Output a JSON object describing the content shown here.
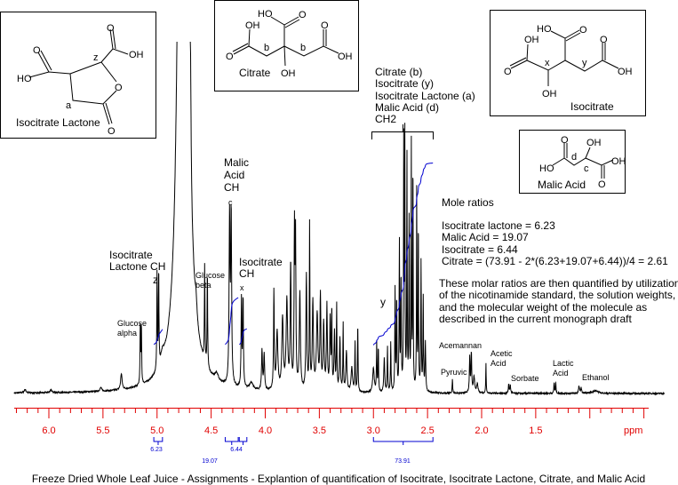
{
  "caption": "Freeze Dried Whole Leaf Juice - Assignments - Explantion of quantification of Isocitrate, Isocitrate Lactone, Citrate, and Malic Acid",
  "colors": {
    "axis": "#e00000",
    "integral": "#0000d0",
    "spectrum": "#000000"
  },
  "structures": {
    "isocitrate_lactone": {
      "name": "Isocitrate Lactone",
      "labels": [
        "z",
        "a"
      ],
      "atoms": [
        "O",
        "HO",
        "O",
        "OH",
        "O",
        "O"
      ]
    },
    "citrate": {
      "name": "Citrate",
      "labels": [
        "b",
        "b"
      ],
      "atoms": [
        "HO",
        "O",
        "OH",
        "O",
        "O",
        "OH",
        "OH"
      ]
    },
    "isocitrate": {
      "name": "Isocitrate",
      "labels": [
        "x",
        "y"
      ],
      "atoms": [
        "HO",
        "O",
        "OH",
        "O",
        "O",
        "OH",
        "OH"
      ]
    },
    "malic_acid": {
      "name": "Malic Acid",
      "labels": [
        "d",
        "c"
      ],
      "atoms": [
        "O",
        "HO",
        "OH",
        "OH",
        "O"
      ]
    }
  },
  "annotations": {
    "ch2_group": [
      "Citrate (b)",
      "Isocitrate (y)",
      "Isocitrate Lactone (a)",
      "Malic Acid (d)",
      "CH2"
    ],
    "isocitrate_lactone_ch": [
      "Isocitrate",
      "Lactone CH",
      "z"
    ],
    "glucose_alpha": [
      "Glucose",
      "alpha"
    ],
    "glucose_beta": [
      "Glucose",
      "beta"
    ],
    "malic_acid_ch": [
      "Malic",
      "Acid",
      "CH",
      "c"
    ],
    "isocitrate_ch": [
      "Isocitrate",
      "CH",
      "x"
    ],
    "y_label": "y",
    "acemannan": "Acemannan",
    "pyruvic": "Pyruvic",
    "acetic_acid": [
      "Acetic",
      "Acid"
    ],
    "sorbate": "Sorbate",
    "lactic_acid": [
      "Lactic",
      "Acid"
    ],
    "ethanol": "Ethanol"
  },
  "mole_ratios": {
    "title": "Mole ratios",
    "lines": [
      "Isocitrate lactone = 6.23",
      "Malic Acid = 19.07",
      "Isocitrate = 6.44",
      "Citrate = (73.91 - 2*(6.23+19.07+6.44))/4 = 2.61"
    ],
    "note": [
      "These molar ratios are then quantified by utilization",
      "of the nicotinamide standard, the solution weights,",
      "and the molecular weight of the molecule as",
      "described in the current monograph draft"
    ]
  },
  "chart_data": {
    "type": "line",
    "title": "",
    "xlabel": "ppm",
    "ylabel": "",
    "x_reversed": true,
    "xlim": [
      6.32,
      0.46
    ],
    "x_ticks": [
      "6.0",
      "5.5",
      "5.0",
      "4.5",
      "4.0",
      "3.5",
      "3.0",
      "2.5",
      "2.0",
      "1.5"
    ],
    "x_tick_values": [
      6.0,
      5.5,
      5.0,
      4.5,
      4.0,
      3.5,
      3.0,
      2.5,
      2.0,
      1.5
    ],
    "grid": false,
    "peaks_note_units": "ppm, relative intensity, half-width ppm",
    "peaks": [
      [
        6.22,
        4,
        0.01
      ],
      [
        5.98,
        3,
        0.01
      ],
      [
        5.52,
        4,
        0.01
      ],
      [
        5.33,
        18,
        0.008
      ],
      [
        5.155,
        70,
        0.003
      ],
      [
        5.145,
        66,
        0.003
      ],
      [
        5.0,
        108,
        0.003
      ],
      [
        4.985,
        110,
        0.003
      ],
      [
        4.95,
        12,
        0.02
      ],
      [
        4.76,
        3000,
        0.022
      ],
      [
        4.7,
        160,
        0.004
      ],
      [
        4.69,
        90,
        0.005
      ],
      [
        4.64,
        18,
        0.01
      ],
      [
        4.56,
        108,
        0.003
      ],
      [
        4.535,
        110,
        0.003
      ],
      [
        4.45,
        8,
        0.02
      ],
      [
        4.33,
        185,
        0.005
      ],
      [
        4.315,
        190,
        0.005
      ],
      [
        4.22,
        98,
        0.004
      ],
      [
        4.205,
        100,
        0.004
      ],
      [
        4.13,
        8,
        0.02
      ],
      [
        4.03,
        45,
        0.005
      ],
      [
        4.01,
        40,
        0.005
      ],
      [
        3.92,
        110,
        0.004
      ],
      [
        3.89,
        65,
        0.008
      ],
      [
        3.84,
        80,
        0.008
      ],
      [
        3.8,
        100,
        0.008
      ],
      [
        3.765,
        140,
        0.005
      ],
      [
        3.73,
        175,
        0.004
      ],
      [
        3.72,
        165,
        0.004
      ],
      [
        3.68,
        110,
        0.006
      ],
      [
        3.62,
        130,
        0.005
      ],
      [
        3.59,
        185,
        0.003
      ],
      [
        3.56,
        100,
        0.006
      ],
      [
        3.52,
        85,
        0.008
      ],
      [
        3.49,
        105,
        0.005
      ],
      [
        3.46,
        75,
        0.006
      ],
      [
        3.43,
        95,
        0.005
      ],
      [
        3.4,
        80,
        0.005
      ],
      [
        3.385,
        90,
        0.003
      ],
      [
        3.36,
        65,
        0.005
      ],
      [
        3.34,
        95,
        0.003
      ],
      [
        3.31,
        60,
        0.005
      ],
      [
        3.28,
        75,
        0.003
      ],
      [
        3.25,
        45,
        0.006
      ],
      [
        3.2,
        28,
        0.008
      ],
      [
        3.17,
        55,
        0.003
      ],
      [
        3.145,
        78,
        0.003
      ],
      [
        3.0,
        28,
        0.008
      ],
      [
        2.97,
        55,
        0.003
      ],
      [
        2.955,
        50,
        0.003
      ],
      [
        2.9,
        38,
        0.005
      ],
      [
        2.87,
        50,
        0.003
      ],
      [
        2.84,
        55,
        0.003
      ],
      [
        2.8,
        115,
        0.003
      ],
      [
        2.785,
        105,
        0.003
      ],
      [
        2.76,
        165,
        0.003
      ],
      [
        2.745,
        130,
        0.003
      ],
      [
        2.72,
        275,
        0.0025
      ],
      [
        2.71,
        280,
        0.0025
      ],
      [
        2.69,
        260,
        0.0025
      ],
      [
        2.67,
        190,
        0.003
      ],
      [
        2.65,
        275,
        0.0025
      ],
      [
        2.635,
        265,
        0.0025
      ],
      [
        2.6,
        225,
        0.0025
      ],
      [
        2.585,
        195,
        0.0025
      ],
      [
        2.56,
        145,
        0.003
      ],
      [
        2.54,
        105,
        0.003
      ],
      [
        2.52,
        55,
        0.004
      ],
      [
        2.27,
        15,
        0.003
      ],
      [
        2.11,
        40,
        0.004
      ],
      [
        2.095,
        44,
        0.004
      ],
      [
        2.07,
        18,
        0.007
      ],
      [
        2.04,
        10,
        0.008
      ],
      [
        1.96,
        33,
        0.0025
      ],
      [
        1.75,
        10,
        0.004
      ],
      [
        1.735,
        9,
        0.004
      ],
      [
        1.33,
        12,
        0.003
      ],
      [
        1.315,
        12,
        0.003
      ],
      [
        1.1,
        8,
        0.005
      ],
      [
        1.08,
        6,
        0.005
      ],
      [
        0.95,
        3,
        0.03
      ]
    ],
    "integrals": [
      {
        "label": "6.23",
        "value": 6.23,
        "range": [
          5.03,
          4.95
        ]
      },
      {
        "label": "19.07",
        "value": 19.07,
        "range": [
          4.37,
          4.25
        ]
      },
      {
        "label": "6.44",
        "value": 6.44,
        "range": [
          4.24,
          4.17
        ]
      },
      {
        "label": "73.91",
        "value": 73.91,
        "range": [
          3.0,
          2.45
        ]
      }
    ]
  }
}
